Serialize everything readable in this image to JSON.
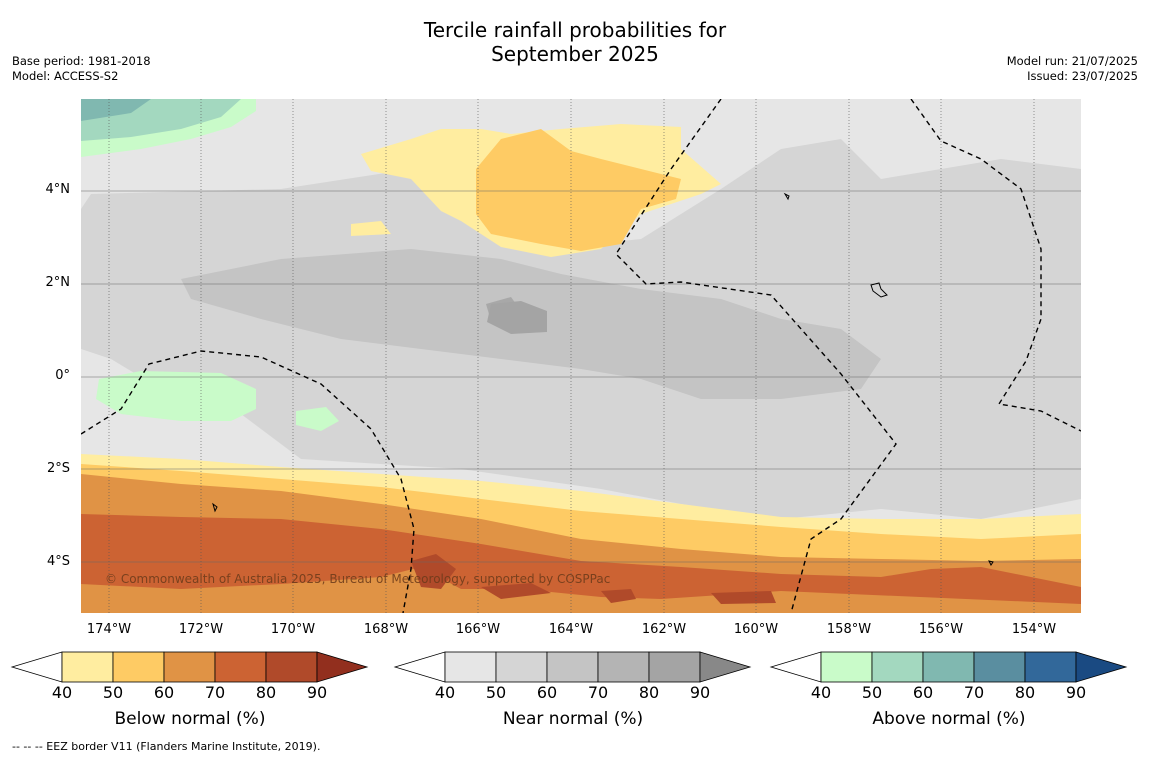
{
  "title_line1": "Tercile rainfall probabilities for",
  "title_line2": "September 2025",
  "meta_left": [
    "Base period: 1981-2018",
    "Model: ACCESS-S2"
  ],
  "meta_right": [
    "Model run: 21/07/2025",
    "Issued: 23/07/2025"
  ],
  "lat_labels": [
    "4°N",
    "2°N",
    "0°",
    "2°S",
    "4°S"
  ],
  "lon_labels": [
    "174°W",
    "172°W",
    "170°W",
    "168°W",
    "166°W",
    "164°W",
    "162°W",
    "160°W",
    "158°W",
    "156°W",
    "154°W"
  ],
  "copyright": "© Commonwealth of Australia 2025, Bureau of Meteorology, supported by COSPPac",
  "colorbars": [
    {
      "title": "Below normal (%)",
      "ticks": [
        "40",
        "50",
        "60",
        "70",
        "80",
        "90"
      ],
      "colors": [
        "#ffeda0",
        "#fecb64",
        "#e09345",
        "#cc6333",
        "#b04a2a"
      ],
      "over": "#922f1e"
    },
    {
      "title": "Near normal (%)",
      "ticks": [
        "40",
        "50",
        "60",
        "70",
        "80",
        "90"
      ],
      "colors": [
        "#e6e6e6",
        "#d5d5d5",
        "#c4c4c4",
        "#b4b4b4",
        "#a4a4a4"
      ],
      "over": "#888888"
    },
    {
      "title": "Above normal (%)",
      "ticks": [
        "40",
        "50",
        "60",
        "70",
        "80",
        "90"
      ],
      "colors": [
        "#c9fbc9",
        "#a3d8bf",
        "#80b8b0",
        "#5a8ea0",
        "#32689a"
      ],
      "over": "#1a4a82"
    }
  ],
  "footnote": "--  --  -- EEZ border V11 (Flanders Marine Institute, 2019)."
}
